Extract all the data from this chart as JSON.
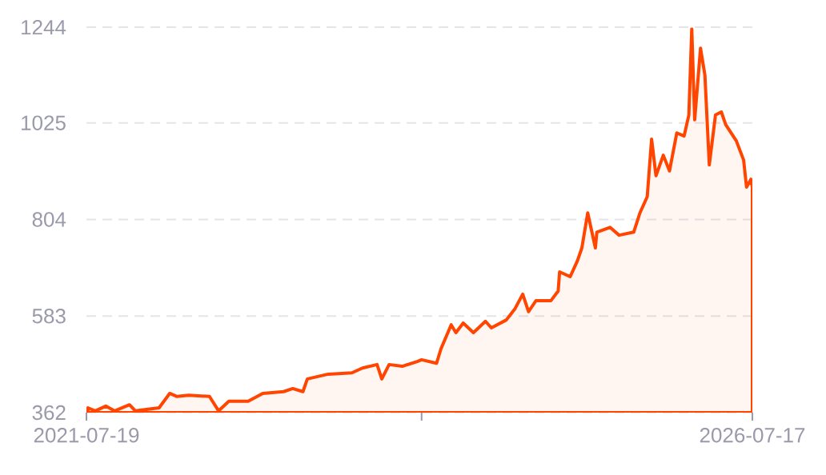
{
  "chart_data": {
    "type": "area",
    "color": "#ff4500",
    "grid": "y",
    "xlim": [
      "2021-07-19",
      "2026-07-17"
    ],
    "xticks": [
      {
        "value": "2021-07-19",
        "label": "2021-07-19"
      },
      {
        "value": "2024-01-23",
        "label": null
      },
      {
        "value": "2026-07-17",
        "label": "2026-07-17"
      }
    ],
    "ylim": [
      362,
      1244
    ],
    "yticks": [
      362,
      583,
      804,
      1025,
      1244
    ],
    "x": [
      "2021-07-23",
      "2021-08-12",
      "2021-09-10",
      "2021-10-04",
      "2021-11-14",
      "2021-11-30",
      "2022-02-03",
      "2022-03-04",
      "2022-03-24",
      "2022-04-25",
      "2022-06-21",
      "2022-07-16",
      "2022-08-13",
      "2022-10-05",
      "2022-11-14",
      "2023-01-10",
      "2023-02-04",
      "2023-03-04",
      "2023-03-16",
      "2023-05-12",
      "2023-07-16",
      "2023-08-14",
      "2023-09-23",
      "2023-10-06",
      "2023-10-26",
      "2023-12-01",
      "2024-01-11",
      "2024-01-23",
      "2024-03-04",
      "2024-03-16",
      "2024-04-13",
      "2024-04-26",
      "2024-05-16",
      "2024-06-13",
      "2024-07-16",
      "2024-08-01",
      "2024-09-11",
      "2024-10-05",
      "2024-10-26",
      "2024-11-11",
      "2024-12-01",
      "2025-01-11",
      "2025-01-31",
      "2025-02-04",
      "2025-03-05",
      "2025-03-25",
      "2025-04-06",
      "2025-04-22",
      "2025-05-13",
      "2025-05-17",
      "2025-06-22",
      "2025-07-17",
      "2025-08-26",
      "2025-09-12",
      "2025-10-02",
      "2025-10-14",
      "2025-10-26",
      "2025-11-15",
      "2025-12-02",
      "2025-12-22",
      "2026-01-11",
      "2026-01-24",
      "2026-02-01",
      "2026-02-09",
      "2026-02-25",
      "2026-03-09",
      "2026-03-21",
      "2026-04-07",
      "2026-04-23",
      "2026-05-05",
      "2026-06-03",
      "2026-06-23",
      "2026-07-01",
      "2026-07-13",
      "2026-07-17"
    ],
    "values": [
      373,
      366,
      377,
      366,
      380,
      366,
      373,
      406,
      399,
      402,
      399,
      366,
      388,
      388,
      406,
      410,
      417,
      410,
      439,
      450,
      453,
      464,
      472,
      439,
      472,
      468,
      479,
      483,
      475,
      508,
      563,
      545,
      567,
      545,
      571,
      556,
      574,
      600,
      633,
      593,
      618,
      618,
      640,
      684,
      673,
      710,
      739,
      819,
      739,
      775,
      786,
      768,
      775,
      819,
      856,
      988,
      904,
      951,
      915,
      1002,
      995,
      1043,
      1240,
      1032,
      1196,
      1134,
      929,
      1043,
      1050,
      1021,
      984,
      940,
      878,
      896,
      878
    ]
  }
}
